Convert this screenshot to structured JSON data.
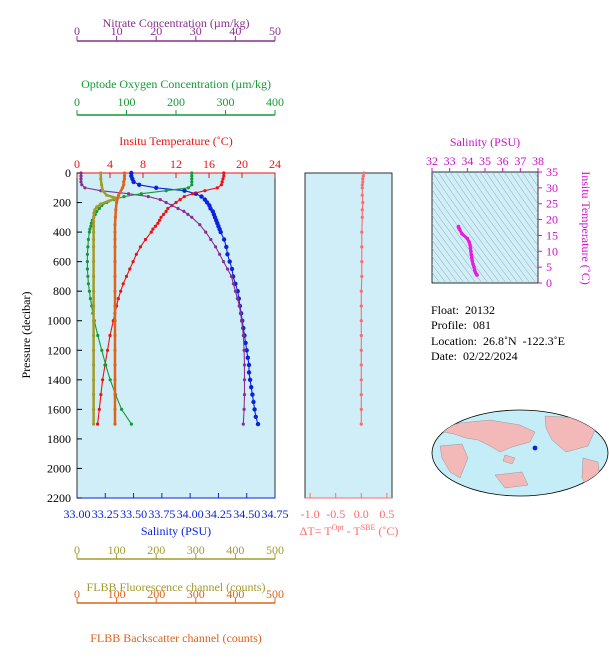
{
  "colors": {
    "nitrate": "#8b2f8f",
    "oxygen": "#149a36",
    "temperature": "#ee1111",
    "salinity": "#0b22dd",
    "fluorescence": "#a19b2c",
    "backscatter": "#e0631c",
    "deltaT": "#ff6b6b",
    "ts_axis": "#cc11cc",
    "panel_bg": "#d0eef8"
  },
  "axes": {
    "nitrate": {
      "label": "Nitrate Concentration (µm/kg)",
      "ticks": [
        "0",
        "10",
        "20",
        "30",
        "40",
        "50"
      ]
    },
    "oxygen": {
      "label": "Optode Oxygen Concentration (µm/kg)",
      "ticks": [
        "0",
        "100",
        "200",
        "300",
        "400"
      ]
    },
    "temperature": {
      "label": "Insitu Temperature (˚C)",
      "ticks": [
        "0",
        "4",
        "8",
        "12",
        "16",
        "20",
        "24"
      ]
    },
    "pressure": {
      "label": "Pressure (decibar)",
      "ticks": [
        "0",
        "200",
        "400",
        "600",
        "800",
        "1000",
        "1200",
        "1400",
        "1600",
        "1800",
        "2000",
        "2200"
      ]
    },
    "salinity": {
      "label": "Salinity (PSU)",
      "ticks": [
        "33.00",
        "33.25",
        "33.50",
        "33.75",
        "34.00",
        "34.25",
        "34.50",
        "34.75"
      ]
    },
    "deltaT": {
      "label_prefix": "ΔT= T",
      "label_sup1": "Opt",
      "label_mid": " - T",
      "label_sup2": "SBE",
      "label_suffix": " (˚C)",
      "ticks": [
        "-1.0",
        "-0.5",
        "0.0",
        "0.5"
      ]
    },
    "fluorescence": {
      "label": "FLBB Fluorescence channel (counts)",
      "ticks": [
        "0",
        "100",
        "200",
        "300",
        "400",
        "500"
      ]
    },
    "backscatter": {
      "label": "FLBB Backscatter channel (counts)",
      "ticks": [
        "0",
        "100",
        "200",
        "300",
        "400",
        "500"
      ]
    },
    "ts_salinity": {
      "label": "Salinity (PSU)",
      "ticks": [
        "32",
        "33",
        "34",
        "35",
        "36",
        "37",
        "38"
      ]
    },
    "ts_temperature": {
      "label": "Insitu Temperature (˚C)",
      "ticks": [
        "0",
        "5",
        "10",
        "15",
        "20",
        "25",
        "30",
        "35"
      ]
    }
  },
  "info": {
    "float": "Float:  20132",
    "profile": "Profile:  081",
    "location": "Location:  26.8˚N  -122.3˚E",
    "date": "Date:  02/22/2024"
  },
  "chart_data": {
    "type": "line",
    "y_axis": "pressure",
    "ylim": [
      2200,
      0
    ],
    "series": [
      {
        "name": "Salinity (PSU)",
        "axis": "salinity",
        "xlim": [
          33.0,
          34.75
        ],
        "p": [
          0,
          20,
          40,
          60,
          80,
          100,
          120,
          140,
          160,
          180,
          200,
          220,
          240,
          260,
          280,
          300,
          320,
          340,
          360,
          380,
          400,
          450,
          500,
          550,
          600,
          650,
          700,
          750,
          800,
          850,
          900,
          950,
          1000,
          1050,
          1100,
          1150,
          1200,
          1250,
          1300,
          1350,
          1400,
          1450,
          1500,
          1550,
          1600,
          1650,
          1700
        ],
        "x": [
          33.48,
          33.48,
          33.49,
          33.5,
          33.55,
          33.7,
          33.95,
          34.05,
          34.1,
          34.13,
          34.15,
          34.17,
          34.18,
          34.2,
          34.21,
          34.22,
          34.23,
          34.24,
          34.25,
          34.26,
          34.27,
          34.3,
          34.32,
          34.33,
          34.35,
          34.37,
          34.38,
          34.4,
          34.42,
          34.43,
          34.44,
          34.45,
          34.46,
          34.47,
          34.48,
          34.49,
          34.5,
          34.51,
          34.52,
          34.52,
          34.53,
          34.54,
          34.55,
          34.56,
          34.57,
          34.58,
          34.6
        ]
      },
      {
        "name": "Insitu Temperature (˚C)",
        "axis": "temperature",
        "xlim": [
          0,
          24
        ],
        "p": [
          0,
          20,
          40,
          60,
          80,
          100,
          120,
          140,
          160,
          180,
          200,
          220,
          240,
          260,
          280,
          300,
          320,
          340,
          360,
          380,
          400,
          450,
          500,
          550,
          600,
          650,
          700,
          750,
          800,
          850,
          900,
          950,
          1000,
          1100,
          1200,
          1300,
          1400,
          1500,
          1600,
          1700
        ],
        "x": [
          17.8,
          17.8,
          17.7,
          17.6,
          17.5,
          17.0,
          15.5,
          14.0,
          13.0,
          12.5,
          12.0,
          11.5,
          11.0,
          10.8,
          10.5,
          10.2,
          10.0,
          9.8,
          9.5,
          9.2,
          9.0,
          8.3,
          7.7,
          7.2,
          6.8,
          6.4,
          6.0,
          5.6,
          5.3,
          5.0,
          4.8,
          4.6,
          4.4,
          4.0,
          3.7,
          3.4,
          3.1,
          2.9,
          2.7,
          2.5
        ]
      },
      {
        "name": "Nitrate Concentration (µm/kg)",
        "axis": "nitrate",
        "xlim": [
          0,
          50
        ],
        "p": [
          0,
          20,
          40,
          60,
          80,
          100,
          120,
          140,
          160,
          180,
          200,
          220,
          240,
          260,
          280,
          300,
          350,
          400,
          450,
          500,
          550,
          600,
          650,
          700,
          750,
          800,
          850,
          900,
          950,
          1000,
          1100,
          1200,
          1300,
          1400,
          1500,
          1600,
          1700
        ],
        "x": [
          1,
          1,
          1,
          1,
          1.2,
          2,
          6,
          13,
          18,
          21,
          22.5,
          24,
          25.5,
          27,
          28,
          29,
          31,
          32.5,
          33.8,
          35,
          36,
          37,
          38,
          39,
          39.5,
          40,
          40.5,
          41,
          41.3,
          41.6,
          42,
          42.2,
          42.3,
          42.3,
          42.3,
          42.2,
          42
        ]
      },
      {
        "name": "Optode Oxygen Concentration (µm/kg)",
        "axis": "oxygen",
        "xlim": [
          0,
          400
        ],
        "p": [
          0,
          20,
          40,
          60,
          80,
          100,
          120,
          140,
          160,
          180,
          200,
          220,
          240,
          260,
          280,
          300,
          320,
          340,
          360,
          380,
          400,
          450,
          500,
          550,
          600,
          650,
          700,
          750,
          800,
          850,
          900,
          950,
          1000,
          1100,
          1200,
          1300,
          1400,
          1500,
          1600,
          1700
        ],
        "x": [
          232,
          232,
          232,
          232,
          232,
          225,
          180,
          130,
          95,
          75,
          60,
          50,
          45,
          40,
          37,
          34,
          31,
          29,
          28,
          26,
          25,
          23,
          22,
          21,
          21,
          21,
          22,
          23,
          25,
          27,
          30,
          32,
          35,
          42,
          50,
          58,
          67,
          78,
          90,
          110
        ]
      },
      {
        "name": "FLBB Fluorescence channel (counts)",
        "axis": "fluorescence",
        "xlim": [
          0,
          500
        ],
        "p": [
          0,
          40,
          80,
          120,
          150,
          170,
          190,
          210,
          230,
          250,
          270,
          300,
          330,
          360,
          400,
          450,
          500,
          600,
          700,
          800,
          900,
          1000,
          1100,
          1200,
          1300,
          1400,
          1500,
          1600,
          1700
        ],
        "x": [
          60,
          60,
          62,
          65,
          75,
          100,
          80,
          60,
          50,
          45,
          43,
          42,
          42,
          42,
          42,
          42,
          42,
          42,
          42,
          42,
          42,
          42,
          42,
          42,
          42,
          42,
          42,
          42,
          42
        ]
      },
      {
        "name": "FLBB Backscatter channel (counts)",
        "axis": "backscatter",
        "xlim": [
          0,
          500
        ],
        "p": [
          0,
          20,
          40,
          60,
          80,
          100,
          150,
          200,
          250,
          300,
          350,
          400,
          450,
          500,
          600,
          700,
          800,
          900,
          1000,
          1100,
          1200,
          1300,
          1400,
          1500,
          1600,
          1700
        ],
        "x": [
          120,
          120,
          120,
          118,
          118,
          115,
          105,
          100,
          98,
          97,
          96,
          96,
          96,
          96,
          96,
          96,
          96,
          96,
          96,
          96,
          96,
          96,
          96,
          96,
          96,
          96
        ]
      },
      {
        "name": "ΔT",
        "axis": "deltaT",
        "xlim": [
          -1.1,
          0.6
        ],
        "p": [
          0,
          20,
          40,
          60,
          80,
          100,
          150,
          200,
          250,
          300,
          400,
          500,
          600,
          700,
          800,
          900,
          1000,
          1100,
          1200,
          1300,
          1400,
          1500,
          1600,
          1700
        ],
        "x": [
          0.05,
          0.04,
          0.03,
          0.03,
          0.02,
          0.02,
          0.02,
          0.03,
          0.02,
          0.02,
          0.01,
          0.01,
          0.01,
          0.01,
          0.0,
          0.0,
          0.0,
          0.0,
          0.0,
          0.0,
          0.0,
          0.0,
          0.0,
          0.0
        ]
      }
    ],
    "ts_diagram": {
      "xlim": [
        32,
        38
      ],
      "ylim": [
        0,
        35
      ],
      "salinity": [
        33.5,
        33.5,
        33.55,
        33.7,
        34.0,
        34.1,
        34.15,
        34.18,
        34.2,
        34.22,
        34.25,
        34.28,
        34.32,
        34.38,
        34.42,
        34.47,
        34.55
      ],
      "temperature": [
        17.8,
        17.6,
        17.0,
        15.5,
        14.0,
        13.0,
        12.0,
        11.0,
        10.0,
        9.0,
        8.0,
        7.0,
        6.0,
        5.0,
        4.0,
        3.2,
        2.5
      ]
    }
  }
}
